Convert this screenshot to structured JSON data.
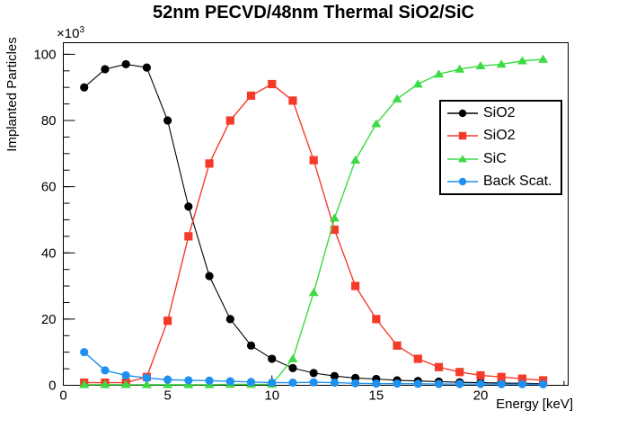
{
  "title": "52nm PECVD/48nm Thermal SiO2/SiC",
  "axes": {
    "x_label": "Energy [keV]",
    "y_label": "Implanted Particles",
    "y_multiplier_base": "×10",
    "y_multiplier_exp": "3"
  },
  "chart_data": {
    "type": "line",
    "title": "52nm PECVD/48nm Thermal SiO2/SiC",
    "xlabel": "Energy [keV]",
    "ylabel": "Implanted Particles",
    "y_axis_multiplier": "×10³",
    "xlim": [
      0,
      24.2
    ],
    "ylim": [
      0,
      103.5
    ],
    "x_ticks": [
      0,
      5,
      10,
      15,
      20
    ],
    "y_ticks": [
      0,
      20,
      40,
      60,
      80,
      100
    ],
    "x_minor_tick_step": 1,
    "y_minor_tick_step": 5,
    "grid": false,
    "legend_position": "inside-right",
    "x": [
      1,
      2,
      3,
      4,
      5,
      6,
      7,
      8,
      9,
      10,
      11,
      12,
      13,
      14,
      15,
      16,
      17,
      18,
      19,
      20,
      21,
      22,
      23
    ],
    "values_unit": "particles ×10³",
    "series": [
      {
        "name": "SiO2",
        "color": "#000000",
        "marker": "circle",
        "values": [
          90,
          95.5,
          97,
          96,
          80,
          54,
          33,
          20,
          12,
          8,
          5.2,
          3.7,
          2.8,
          2.2,
          1.9,
          1.5,
          1.3,
          1.1,
          0.9,
          0.8,
          0.7,
          0.6,
          0.5
        ]
      },
      {
        "name": "SiO2",
        "color": "#F43B2A",
        "marker": "square",
        "values": [
          0.8,
          0.8,
          0.8,
          2.5,
          19.5,
          45,
          67,
          80,
          87.5,
          91,
          86,
          68,
          47,
          30,
          20,
          12,
          8,
          5.5,
          4,
          3,
          2.5,
          2,
          1.5
        ]
      },
      {
        "name": "SiC",
        "color": "#3CDB43",
        "marker": "triangle",
        "values": [
          0.2,
          0.2,
          0.2,
          0.2,
          0.2,
          0.2,
          0.2,
          0.3,
          0.3,
          0.3,
          8,
          28,
          50.5,
          68,
          79,
          86.5,
          91,
          94,
          95.5,
          96.5,
          97,
          98,
          98.5
        ]
      },
      {
        "name": "Back Scat.",
        "color": "#1E90F0",
        "marker": "circle",
        "values": [
          10,
          4.5,
          3,
          2.2,
          1.7,
          1.5,
          1.4,
          1.2,
          1.0,
          0.8,
          0.8,
          0.9,
          0.8,
          0.6,
          0.5,
          0.5,
          0.45,
          0.4,
          0.4,
          0.4,
          0.35,
          0.35,
          0.3
        ]
      }
    ]
  }
}
